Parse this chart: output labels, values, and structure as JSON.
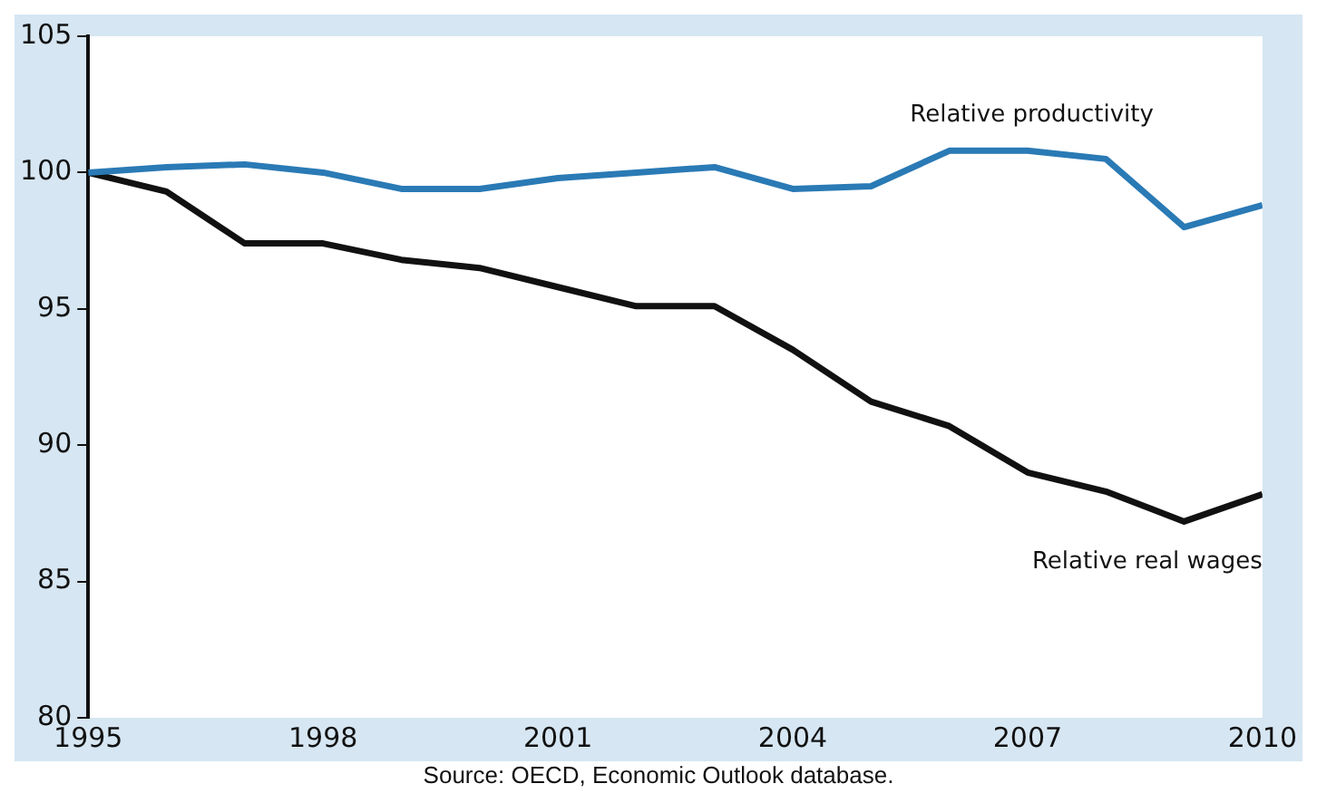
{
  "chart_data": {
    "type": "line",
    "x": [
      1995,
      1996,
      1997,
      1998,
      1999,
      2000,
      2001,
      2002,
      2003,
      2004,
      2005,
      2006,
      2007,
      2008,
      2009,
      2010
    ],
    "series": [
      {
        "name": "Relative productivity",
        "color": "#2a7ab5",
        "values": [
          100,
          100.2,
          100.3,
          100,
          99.4,
          99.4,
          99.8,
          100,
          100.2,
          99.4,
          99.5,
          100.8,
          100.8,
          100.5,
          98,
          98.8
        ]
      },
      {
        "name": "Relative real wages",
        "color": "#111111",
        "values": [
          100,
          99.3,
          97.4,
          97.4,
          96.8,
          96.5,
          95.8,
          95.1,
          95.1,
          93.5,
          91.6,
          90.7,
          89,
          88.3,
          87.2,
          88.2
        ]
      }
    ],
    "xlim": [
      1995,
      2010
    ],
    "xticks": [
      1995,
      1998,
      2001,
      2004,
      2007,
      2010
    ],
    "ylim": [
      80,
      105
    ],
    "yticks": [
      80,
      85,
      90,
      95,
      100,
      105
    ],
    "grid": false,
    "legend": false,
    "marker": "none",
    "line_style": "solid",
    "annotations": [
      "Source: OECD, Economic Outlook database."
    ]
  }
}
